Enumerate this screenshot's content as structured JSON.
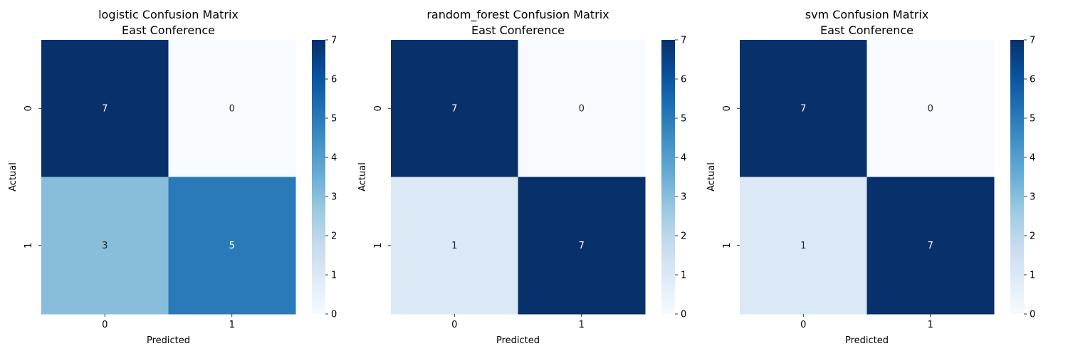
{
  "colormap": {
    "name": "Blues",
    "stops": [
      "#f7fbff",
      "#deebf7",
      "#c6dbef",
      "#9ecae1",
      "#6baed6",
      "#4292c6",
      "#2171b5",
      "#08519c",
      "#08306b"
    ]
  },
  "chart_data": [
    {
      "type": "heatmap",
      "title": "logistic Confusion Matrix",
      "subtitle": "East Conference",
      "xlabel": "Predicted",
      "ylabel": "Actual",
      "x_categories": [
        "0",
        "1"
      ],
      "y_categories": [
        "0",
        "1"
      ],
      "values": [
        [
          7,
          0
        ],
        [
          3,
          5
        ]
      ],
      "colorbar": {
        "min": 0,
        "max": 7,
        "ticks": [
          "0",
          "1",
          "2",
          "3",
          "4",
          "5",
          "6",
          "7"
        ]
      }
    },
    {
      "type": "heatmap",
      "title": "random_forest Confusion Matrix",
      "subtitle": "East Conference",
      "xlabel": "Predicted",
      "ylabel": "Actual",
      "x_categories": [
        "0",
        "1"
      ],
      "y_categories": [
        "0",
        "1"
      ],
      "values": [
        [
          7,
          0
        ],
        [
          1,
          7
        ]
      ],
      "colorbar": {
        "min": 0,
        "max": 7,
        "ticks": [
          "0",
          "1",
          "2",
          "3",
          "4",
          "5",
          "6",
          "7"
        ]
      }
    },
    {
      "type": "heatmap",
      "title": "svm Confusion Matrix",
      "subtitle": "East Conference",
      "xlabel": "Predicted",
      "ylabel": "Actual",
      "x_categories": [
        "0",
        "1"
      ],
      "y_categories": [
        "0",
        "1"
      ],
      "values": [
        [
          7,
          0
        ],
        [
          1,
          7
        ]
      ],
      "colorbar": {
        "min": 0,
        "max": 7,
        "ticks": [
          "0",
          "1",
          "2",
          "3",
          "4",
          "5",
          "6",
          "7"
        ]
      }
    }
  ]
}
